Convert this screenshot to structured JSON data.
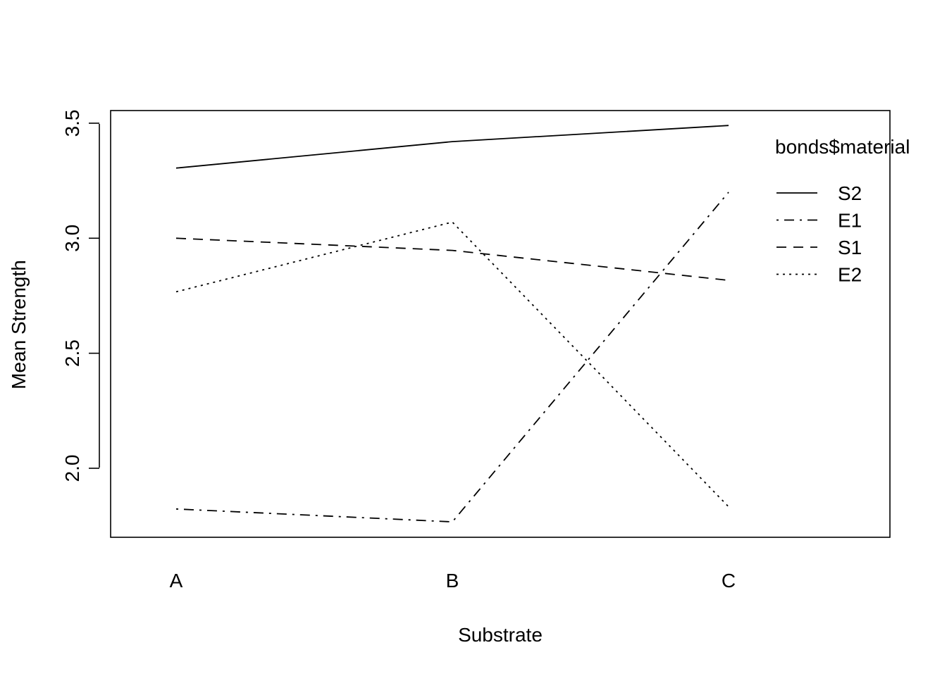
{
  "chart_data": {
    "type": "line",
    "title": "",
    "xlabel": "Substrate",
    "ylabel": "Mean Strength",
    "categories": [
      "A",
      "B",
      "C"
    ],
    "ylim": [
      1.7,
      3.555
    ],
    "y_ticks": [
      "2.0",
      "2.5",
      "3.0",
      "3.5"
    ],
    "y_tick_values": [
      2.0,
      2.5,
      3.0,
      3.5
    ],
    "grid": false,
    "legend": {
      "title": "bonds$material",
      "position": "top-right"
    },
    "series": [
      {
        "name": "S2",
        "linestyle": "solid",
        "values": [
          3.305,
          3.42,
          3.49
        ]
      },
      {
        "name": "E1",
        "linestyle": "dotdash",
        "values": [
          1.823,
          1.767,
          3.2
        ]
      },
      {
        "name": "S1",
        "linestyle": "dashed",
        "values": [
          3.0,
          2.947,
          2.817
        ]
      },
      {
        "name": "E2",
        "linestyle": "dotted",
        "values": [
          2.767,
          3.07,
          1.833
        ]
      }
    ],
    "line_color": "#000000"
  }
}
